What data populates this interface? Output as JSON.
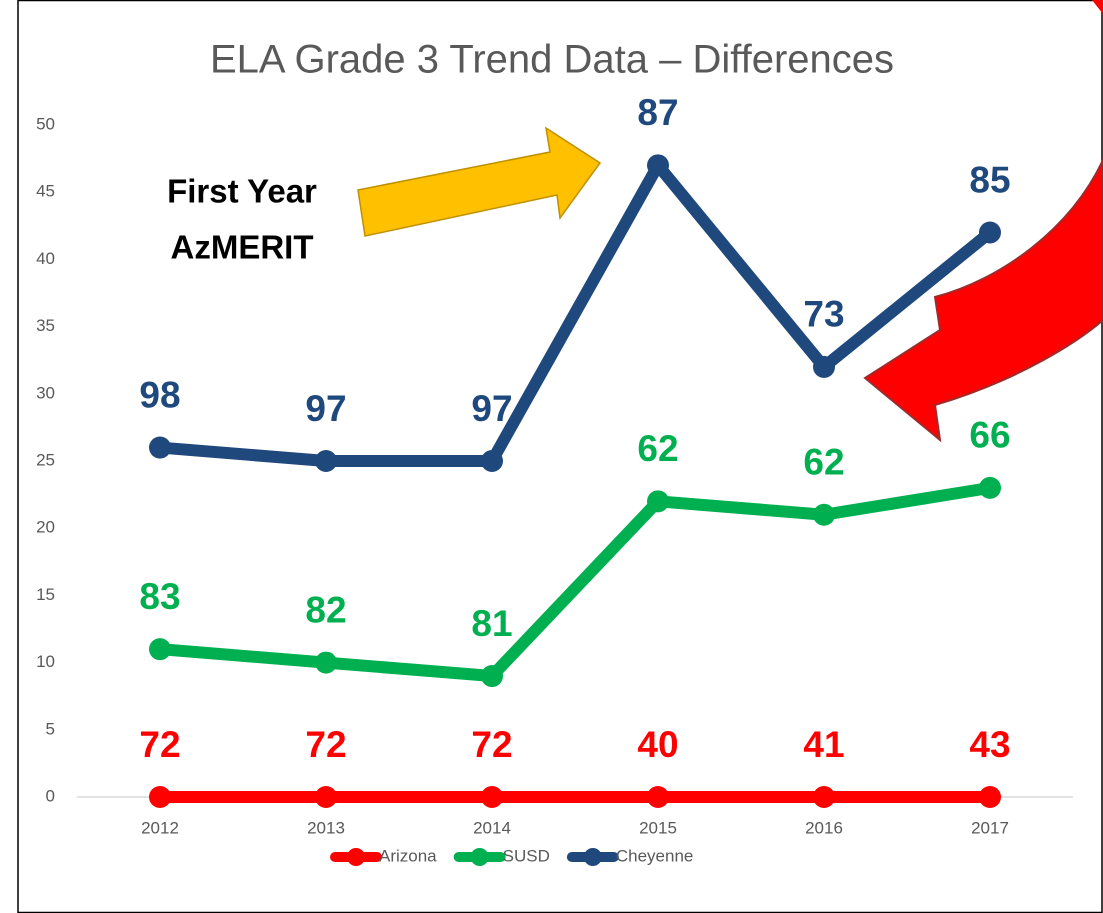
{
  "chart_data": {
    "type": "line",
    "title": "ELA Grade 3 Trend Data – Differences",
    "categories": [
      "2012",
      "2013",
      "2014",
      "2015",
      "2016",
      "2017"
    ],
    "series": [
      {
        "name": "Arizona",
        "color": "#ff0000",
        "values": [
          0,
          0,
          0,
          0,
          0,
          0
        ],
        "point_labels": [
          72,
          72,
          72,
          40,
          41,
          43
        ]
      },
      {
        "name": "SUSD",
        "color": "#00b050",
        "values": [
          11,
          10,
          9,
          22,
          21,
          23
        ],
        "point_labels": [
          83,
          82,
          81,
          62,
          62,
          66
        ]
      },
      {
        "name": "Cheyenne",
        "color": "#1f497d",
        "values": [
          26,
          25,
          25,
          47,
          32,
          42
        ],
        "point_labels": [
          98,
          97,
          97,
          87,
          73,
          85
        ]
      }
    ],
    "ylim": [
      0,
      50
    ],
    "yticks": [
      0,
      5,
      10,
      15,
      20,
      25,
      30,
      35,
      40,
      45,
      50
    ],
    "grid": false,
    "legend": "bottom",
    "annotations": [
      "First Year",
      "AzMERIT"
    ]
  }
}
